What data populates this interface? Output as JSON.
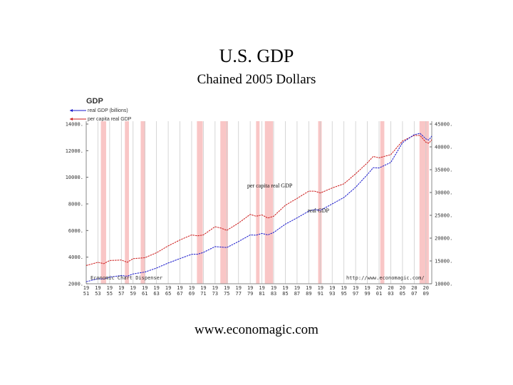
{
  "slide": {
    "title": "U.S. GDP",
    "subtitle": "Chained 2005 Dollars",
    "footer": "www.economagic.com"
  },
  "chart_data": {
    "type": "line",
    "title": "GDP",
    "legend": [
      "real GDP (billions)",
      "per capita real GDP"
    ],
    "legend_placement": "top-left",
    "series_labels": {
      "per_capita": "per capita real GDP",
      "real": "real GDP"
    },
    "credits": {
      "left": "Economic Chart Dispenser",
      "right": "http://www.economagic.com/"
    },
    "colors": {
      "real": "#1a1acc",
      "per_capita": "#cc1a1a",
      "recession": "#f9c6c6",
      "grid": "#cccccc"
    },
    "x_range": [
      1951,
      2010
    ],
    "x_ticks": [
      {
        "top": "19",
        "bottom": "51",
        "year": 1951
      },
      {
        "top": "19",
        "bottom": "53",
        "year": 1953
      },
      {
        "top": "19",
        "bottom": "55",
        "year": 1955
      },
      {
        "top": "19",
        "bottom": "57",
        "year": 1957
      },
      {
        "top": "19",
        "bottom": "59",
        "year": 1959
      },
      {
        "top": "19",
        "bottom": "61",
        "year": 1961
      },
      {
        "top": "19",
        "bottom": "63",
        "year": 1963
      },
      {
        "top": "19",
        "bottom": "65",
        "year": 1965
      },
      {
        "top": "19",
        "bottom": "67",
        "year": 1967
      },
      {
        "top": "19",
        "bottom": "69",
        "year": 1969
      },
      {
        "top": "19",
        "bottom": "71",
        "year": 1971
      },
      {
        "top": "19",
        "bottom": "73",
        "year": 1973
      },
      {
        "top": "19",
        "bottom": "75",
        "year": 1975
      },
      {
        "top": "19",
        "bottom": "77",
        "year": 1977
      },
      {
        "top": "19",
        "bottom": "79",
        "year": 1979
      },
      {
        "top": "19",
        "bottom": "81",
        "year": 1981
      },
      {
        "top": "19",
        "bottom": "83",
        "year": 1983
      },
      {
        "top": "19",
        "bottom": "85",
        "year": 1985
      },
      {
        "top": "19",
        "bottom": "87",
        "year": 1987
      },
      {
        "top": "19",
        "bottom": "89",
        "year": 1989
      },
      {
        "top": "19",
        "bottom": "91",
        "year": 1991
      },
      {
        "top": "19",
        "bottom": "93",
        "year": 1993
      },
      {
        "top": "19",
        "bottom": "95",
        "year": 1995
      },
      {
        "top": "19",
        "bottom": "97",
        "year": 1997
      },
      {
        "top": "19",
        "bottom": "99",
        "year": 1999
      },
      {
        "top": "20",
        "bottom": "01",
        "year": 2001
      },
      {
        "top": "20",
        "bottom": "03",
        "year": 2003
      },
      {
        "top": "20",
        "bottom": "05",
        "year": 2005
      },
      {
        "top": "20",
        "bottom": "07",
        "year": 2007
      },
      {
        "top": "20",
        "bottom": "09",
        "year": 2009
      }
    ],
    "left_axis": {
      "label": "real GDP (billions)",
      "range": [
        2000,
        14000
      ],
      "ticks": [
        {
          "v": 2000,
          "t": "2000."
        },
        {
          "v": 4000,
          "t": "4000."
        },
        {
          "v": 6000,
          "t": "6000."
        },
        {
          "v": 8000,
          "t": "8000."
        },
        {
          "v": 10000,
          "t": "10000."
        },
        {
          "v": 12000,
          "t": "12000."
        },
        {
          "v": 14000,
          "t": "14000."
        }
      ]
    },
    "right_axis": {
      "label": "per capita real GDP",
      "range": [
        10000,
        45000
      ],
      "ticks": [
        {
          "v": 10000,
          "t": "10000."
        },
        {
          "v": 15000,
          "t": "15000."
        },
        {
          "v": 20000,
          "t": "20000."
        },
        {
          "v": 25000,
          "t": "25000."
        },
        {
          "v": 30000,
          "t": "30000."
        },
        {
          "v": 35000,
          "t": "35000."
        },
        {
          "v": 40000,
          "t": "40000."
        },
        {
          "v": 45000,
          "t": "45000."
        }
      ]
    },
    "recessions": [
      [
        1953.5,
        1954.4
      ],
      [
        1957.6,
        1958.3
      ],
      [
        1960.3,
        1961.1
      ],
      [
        1969.9,
        1970.9
      ],
      [
        1973.9,
        1975.2
      ],
      [
        1980.0,
        1980.6
      ],
      [
        1981.5,
        1982.9
      ],
      [
        1990.6,
        1991.2
      ],
      [
        2001.2,
        2001.9
      ],
      [
        2007.9,
        2009.5
      ]
    ],
    "series": [
      {
        "name": "real GDP (billions)",
        "axis": "left",
        "x": [
          1951,
          1953,
          1954,
          1955,
          1957,
          1958,
          1959,
          1961,
          1963,
          1965,
          1967,
          1969,
          1970,
          1971,
          1973,
          1974,
          1975,
          1977,
          1979,
          1980,
          1981,
          1982,
          1983,
          1985,
          1987,
          1989,
          1990,
          1991,
          1993,
          1995,
          1997,
          1999,
          2000,
          2001,
          2003,
          2005,
          2007,
          2008,
          2009,
          2009.5,
          2010
        ],
        "y": [
          2150,
          2380,
          2350,
          2500,
          2620,
          2570,
          2740,
          2880,
          3180,
          3560,
          3890,
          4210,
          4220,
          4350,
          4790,
          4760,
          4720,
          5170,
          5670,
          5650,
          5780,
          5670,
          5850,
          6480,
          6950,
          7460,
          7570,
          7520,
          8000,
          8480,
          9250,
          10200,
          10720,
          10700,
          11120,
          12600,
          13200,
          13300,
          12880,
          12800,
          13100
        ]
      },
      {
        "name": "per capita real GDP",
        "axis": "right",
        "x": [
          1951,
          1953,
          1954,
          1955,
          1957,
          1958,
          1959,
          1961,
          1963,
          1965,
          1967,
          1969,
          1970,
          1971,
          1973,
          1974,
          1975,
          1977,
          1979,
          1980,
          1981,
          1982,
          1983,
          1985,
          1987,
          1989,
          1990,
          1991,
          1993,
          1995,
          1997,
          1999,
          2000,
          2001,
          2003,
          2005,
          2007,
          2008,
          2009,
          2009.5,
          2010
        ],
        "y": [
          14000,
          14700,
          14400,
          15100,
          15200,
          14700,
          15500,
          15700,
          16800,
          18300,
          19600,
          20700,
          20500,
          20700,
          22500,
          22200,
          21700,
          23300,
          25200,
          24800,
          25100,
          24400,
          24800,
          27200,
          28700,
          30300,
          30300,
          29900,
          31000,
          31900,
          34100,
          36500,
          37900,
          37600,
          38300,
          41300,
          42500,
          42500,
          41000,
          40800,
          41600
        ]
      }
    ]
  }
}
